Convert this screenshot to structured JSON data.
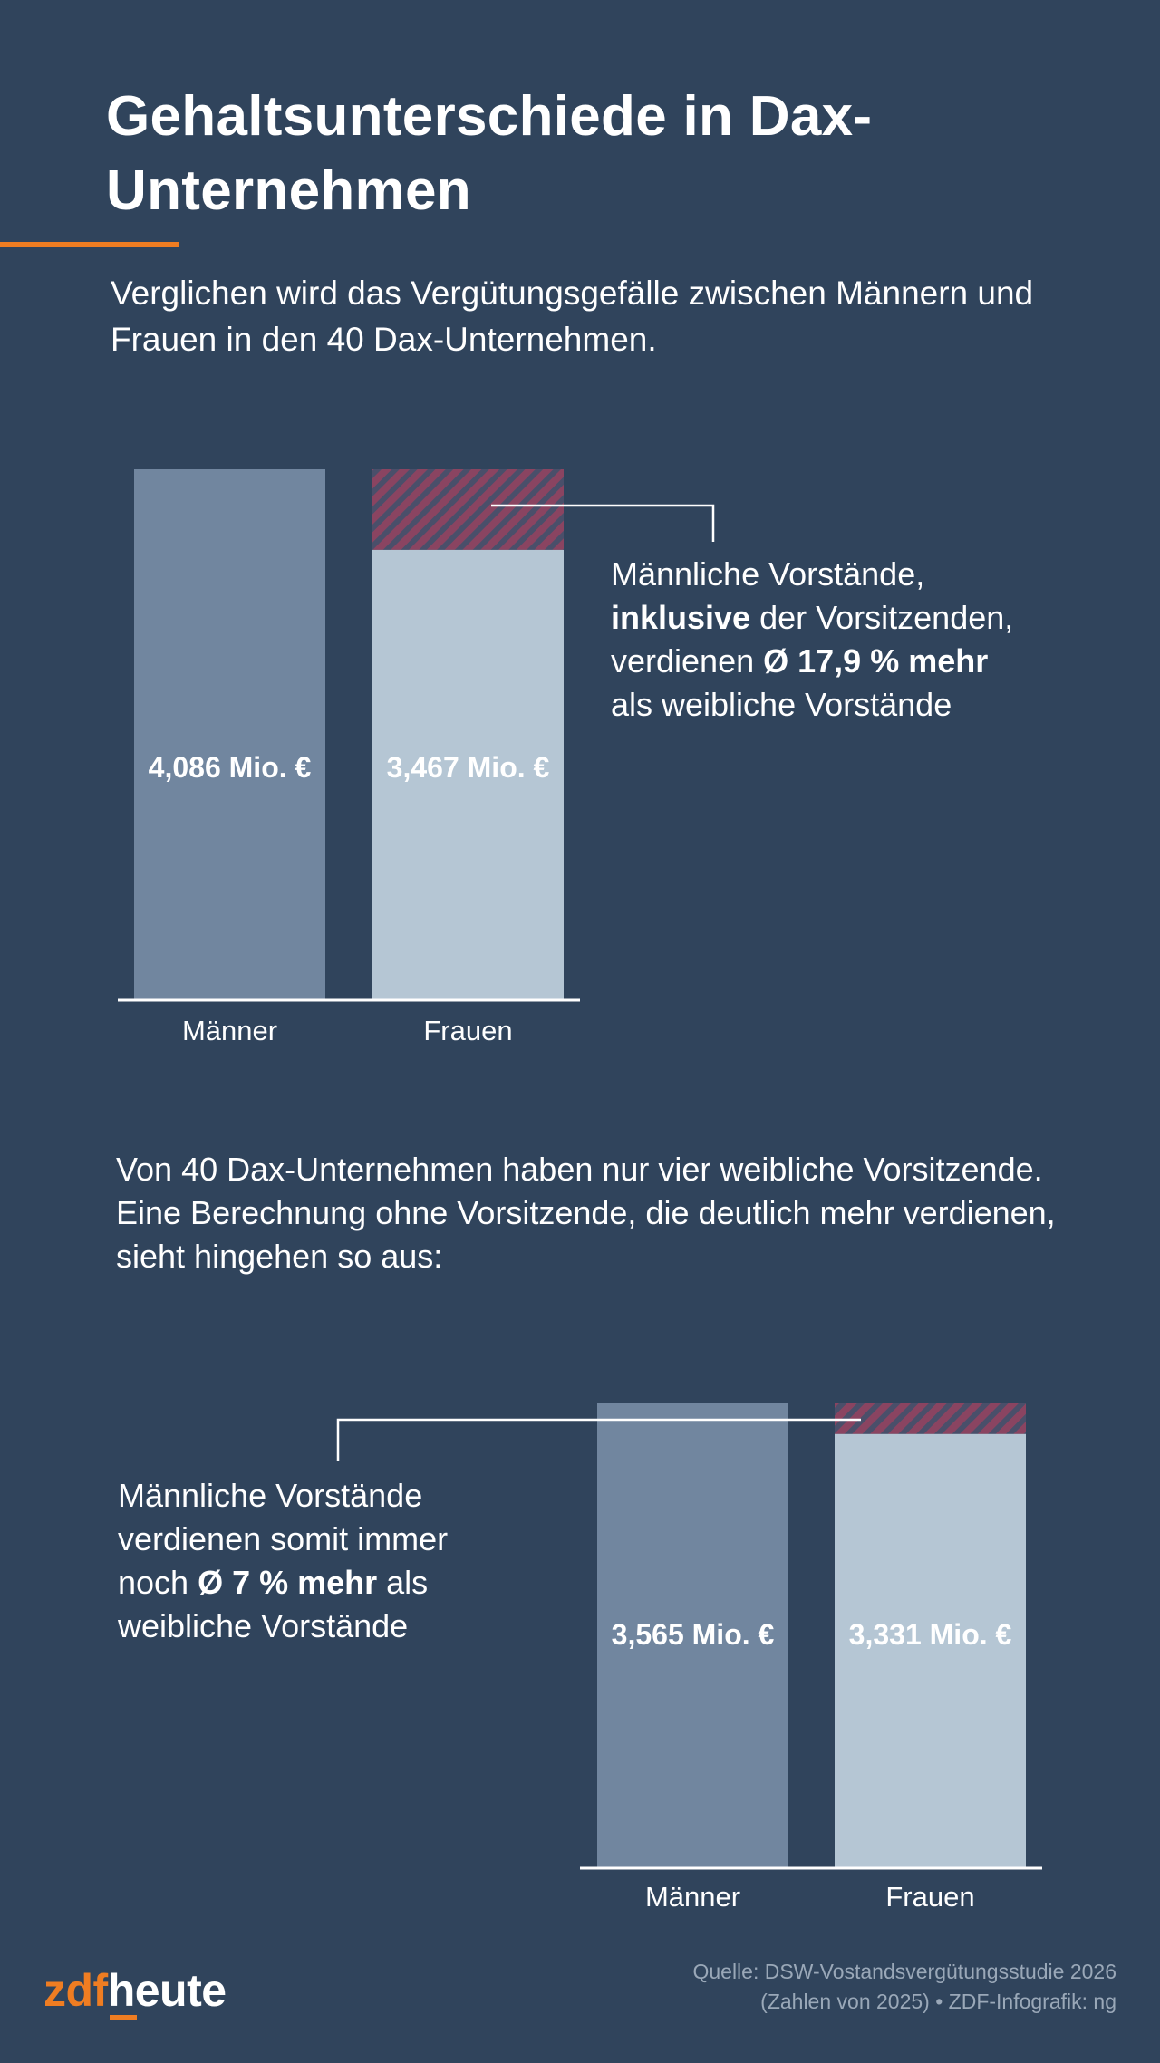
{
  "header": {
    "title": "Gehaltsunterschiede in Dax-Unternehmen",
    "intro": "Verglichen wird das Vergütungsgefälle zwischen Männern und Frauen in den 40 Dax-Unternehmen."
  },
  "section2": {
    "text": "Von 40 Dax-Unternehmen haben nur vier weibliche Vorsitzende. Eine Berechnung ohne Vorsitzende, die deutlich mehr verdienen, sieht hingehen so aus:"
  },
  "annotations": {
    "a1": {
      "line1": "Männliche Vorstände,",
      "line2_bold": "inklusive",
      "line2_rest": " der Vorsitzenden,",
      "line3_pre": "verdienen ",
      "line3_bold": "Ø 17,9 % mehr",
      "line4": "als weibliche Vorstände"
    },
    "a2": {
      "line1": "Männliche Vorstände",
      "line2": "verdienen somit immer",
      "line3_pre": "noch ",
      "line3_bold": "Ø 7 % mehr",
      "line3_post": " als",
      "line4": "weibliche Vorstände"
    }
  },
  "chart_data": [
    {
      "type": "bar",
      "categories": [
        "Männer",
        "Frauen"
      ],
      "values": [
        4.086,
        3.467
      ],
      "value_labels": [
        "4,086 Mio. €",
        "3,467 Mio. €"
      ],
      "gap_highlight": "hatched difference on Frauen bar",
      "colors": {
        "Männer": "#71869f",
        "Frauen": "#b5c6d4",
        "gap": "#8a4461"
      }
    },
    {
      "type": "bar",
      "categories": [
        "Männer",
        "Frauen"
      ],
      "values": [
        3.565,
        3.331
      ],
      "value_labels": [
        "3,565 Mio. €",
        "3,331 Mio. €"
      ],
      "gap_highlight": "hatched difference on Frauen bar",
      "colors": {
        "Männer": "#71869f",
        "Frauen": "#b5c6d4",
        "gap": "#8a4461"
      }
    }
  ],
  "footer": {
    "logo_zdf": "zdf",
    "logo_heute": "heute",
    "source_line1": "Quelle: DSW-Vostandsvergütungsstudie 2026",
    "source_line2": "(Zahlen von 2025) • ZDF-Infografik: ng"
  }
}
